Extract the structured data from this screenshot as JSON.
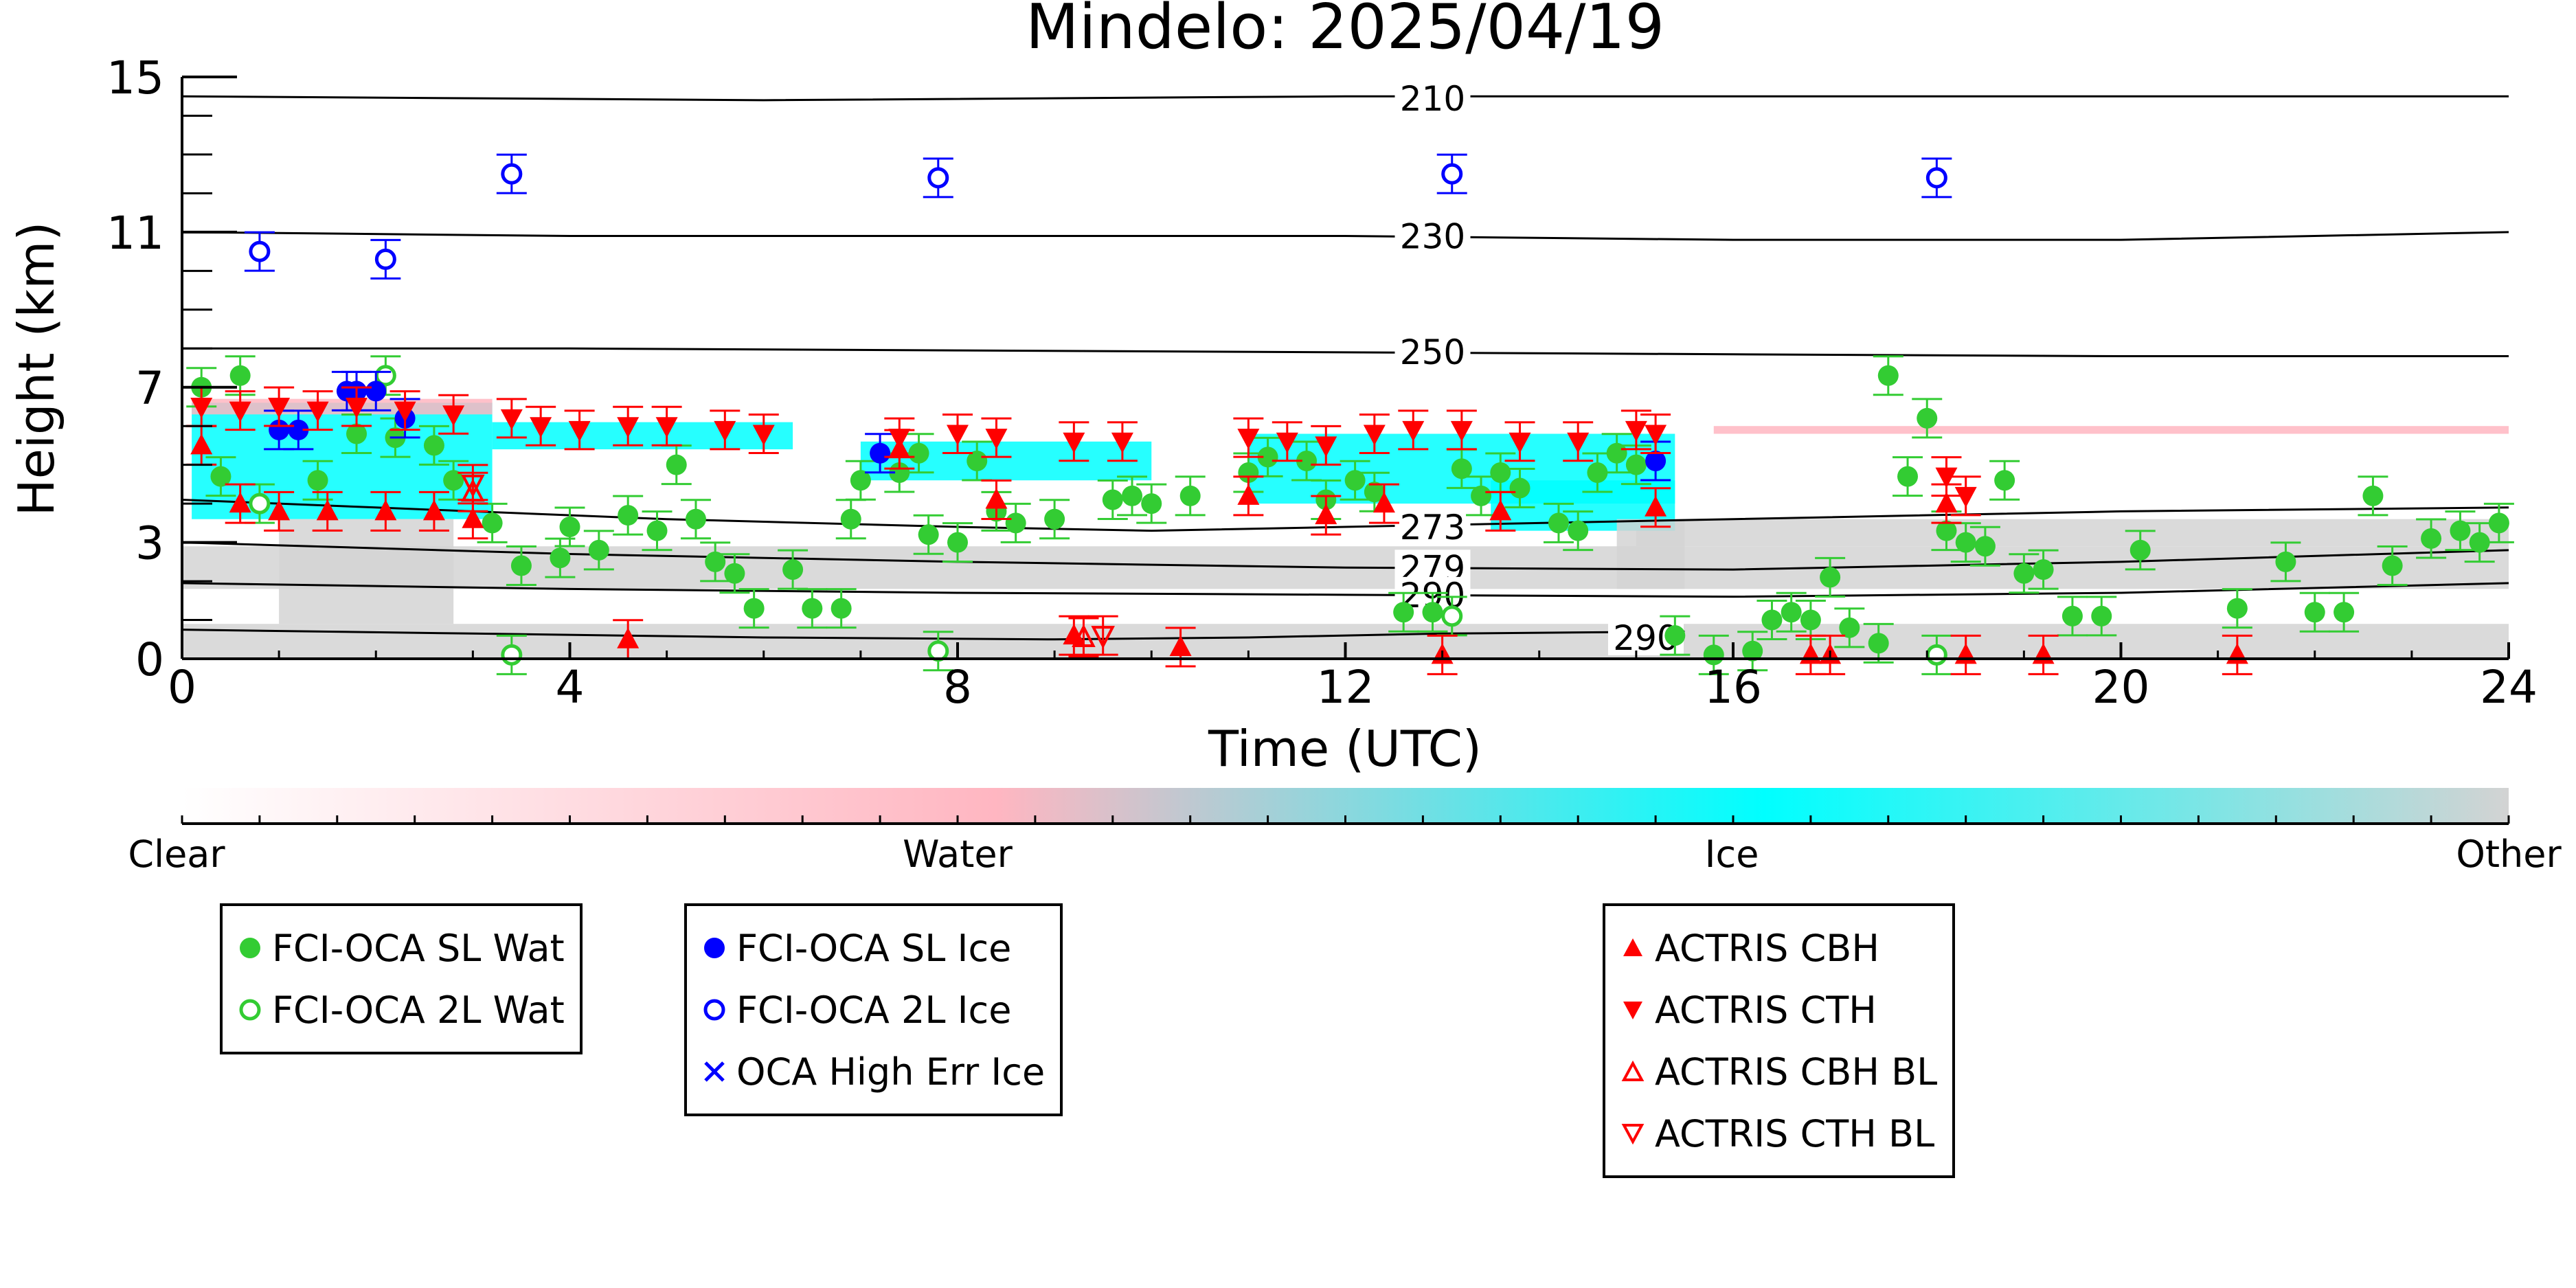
{
  "chart_data": {
    "type": "scatter",
    "title": "Mindelo: 2025/04/19",
    "xlabel": "Time (UTC)",
    "ylabel": "Height (km)",
    "xlim": [
      0,
      24
    ],
    "ylim": [
      0,
      15
    ],
    "x_ticks": [
      "0",
      "4",
      "8",
      "12",
      "16",
      "20",
      "24"
    ],
    "y_ticks": [
      "0",
      "3",
      "7",
      "11",
      "15"
    ],
    "grid": false,
    "background_image": "cloud classification curtain (Clear / Water / Ice / Other)",
    "colorbar": {
      "labels": [
        "Clear",
        "Water",
        "Ice",
        "Other"
      ],
      "colors": [
        "#ffffff",
        "#ffb6c1",
        "#00ffff",
        "#d3d3d3"
      ]
    },
    "temperature_contours": [
      {
        "label": "210",
        "x": [
          0,
          6,
          12,
          18,
          24
        ],
        "y": [
          14.5,
          14.4,
          14.5,
          14.5,
          14.5
        ]
      },
      {
        "label": "230",
        "x": [
          0,
          4,
          8,
          12,
          16,
          20,
          24
        ],
        "y": [
          11.0,
          10.9,
          10.9,
          10.9,
          10.8,
          10.8,
          11.0
        ]
      },
      {
        "label": "250",
        "x": [
          0,
          4,
          8,
          12,
          16,
          20,
          24
        ],
        "y": [
          8.0,
          8.0,
          7.95,
          7.9,
          7.85,
          7.8,
          7.8
        ]
      },
      {
        "label": "273",
        "x": [
          0,
          2,
          5,
          8,
          10,
          12,
          14,
          16,
          20,
          24
        ],
        "y": [
          4.1,
          3.9,
          3.6,
          3.4,
          3.3,
          3.4,
          3.5,
          3.6,
          3.8,
          3.9
        ]
      },
      {
        "label": "279",
        "x": [
          0,
          4,
          8,
          12,
          16,
          20,
          24
        ],
        "y": [
          3.0,
          2.7,
          2.5,
          2.35,
          2.3,
          2.5,
          2.8
        ]
      },
      {
        "label": "290",
        "x": [
          0,
          4,
          8,
          12,
          16,
          20,
          24
        ],
        "y": [
          1.95,
          1.8,
          1.7,
          1.65,
          1.6,
          1.7,
          1.95
        ]
      },
      {
        "label": "290",
        "x": [
          0,
          3,
          6,
          9,
          11,
          13,
          15.5
        ],
        "y": [
          0.75,
          0.65,
          0.55,
          0.5,
          0.55,
          0.65,
          0.7
        ]
      }
    ],
    "series": [
      {
        "name": "FCI-OCA SL Wat",
        "color": "#33cc33",
        "marker": "filled-circle",
        "points": [
          [
            0.2,
            7.0
          ],
          [
            0.4,
            4.7
          ],
          [
            0.6,
            7.3
          ],
          [
            1.4,
            4.6
          ],
          [
            1.8,
            5.8
          ],
          [
            2.2,
            5.7
          ],
          [
            2.6,
            5.5
          ],
          [
            2.8,
            4.6
          ],
          [
            3.2,
            3.5
          ],
          [
            3.5,
            2.4
          ],
          [
            3.9,
            2.6
          ],
          [
            4.0,
            3.4
          ],
          [
            4.3,
            2.8
          ],
          [
            4.6,
            3.7
          ],
          [
            4.9,
            3.3
          ],
          [
            5.1,
            5.0
          ],
          [
            5.3,
            3.6
          ],
          [
            5.5,
            2.5
          ],
          [
            5.7,
            2.2
          ],
          [
            5.9,
            1.3
          ],
          [
            6.3,
            2.3
          ],
          [
            6.5,
            1.3
          ],
          [
            6.8,
            1.3
          ],
          [
            6.9,
            3.6
          ],
          [
            7.0,
            4.6
          ],
          [
            7.4,
            4.8
          ],
          [
            7.6,
            5.3
          ],
          [
            7.7,
            3.2
          ],
          [
            8.0,
            3.0
          ],
          [
            8.2,
            5.1
          ],
          [
            8.4,
            3.8
          ],
          [
            8.6,
            3.5
          ],
          [
            9.0,
            3.6
          ],
          [
            9.6,
            4.1
          ],
          [
            9.8,
            4.2
          ],
          [
            10.0,
            4.0
          ],
          [
            10.4,
            4.2
          ],
          [
            11.0,
            4.8
          ],
          [
            11.2,
            5.2
          ],
          [
            11.6,
            5.1
          ],
          [
            11.8,
            4.1
          ],
          [
            12.1,
            4.6
          ],
          [
            12.3,
            4.3
          ],
          [
            12.6,
            1.2
          ],
          [
            12.9,
            1.2
          ],
          [
            13.2,
            4.9
          ],
          [
            13.4,
            4.2
          ],
          [
            13.6,
            4.8
          ],
          [
            13.8,
            4.4
          ],
          [
            14.2,
            3.5
          ],
          [
            14.4,
            3.3
          ],
          [
            14.6,
            4.8
          ],
          [
            14.8,
            5.3
          ],
          [
            15.0,
            5.0
          ],
          [
            15.4,
            0.6
          ],
          [
            15.8,
            0.1
          ],
          [
            16.2,
            0.2
          ],
          [
            16.4,
            1.0
          ],
          [
            16.6,
            1.2
          ],
          [
            16.8,
            1.0
          ],
          [
            17.0,
            2.1
          ],
          [
            17.2,
            0.8
          ],
          [
            17.5,
            0.4
          ],
          [
            17.6,
            7.3
          ],
          [
            17.8,
            4.7
          ],
          [
            18.0,
            6.2
          ],
          [
            18.2,
            3.3
          ],
          [
            18.4,
            3.0
          ],
          [
            18.6,
            2.9
          ],
          [
            18.8,
            4.6
          ],
          [
            19.0,
            2.2
          ],
          [
            19.2,
            2.3
          ],
          [
            19.5,
            1.1
          ],
          [
            19.8,
            1.1
          ],
          [
            20.2,
            2.8
          ],
          [
            21.2,
            1.3
          ],
          [
            21.7,
            2.5
          ],
          [
            22.0,
            1.2
          ],
          [
            22.3,
            1.2
          ],
          [
            22.6,
            4.2
          ],
          [
            22.8,
            2.4
          ],
          [
            23.2,
            3.1
          ],
          [
            23.5,
            3.3
          ],
          [
            23.7,
            3.0
          ],
          [
            23.9,
            3.5
          ]
        ]
      },
      {
        "name": "FCI-OCA 2L Wat",
        "color": "#33cc33",
        "marker": "open-circle",
        "points": [
          [
            0.8,
            4.0
          ],
          [
            2.1,
            7.3
          ],
          [
            3.4,
            0.1
          ],
          [
            7.8,
            0.2
          ],
          [
            13.1,
            1.1
          ],
          [
            18.1,
            0.1
          ]
        ]
      },
      {
        "name": "FCI-OCA SL Ice",
        "color": "#0000ff",
        "marker": "filled-circle",
        "points": [
          [
            1.0,
            5.9
          ],
          [
            1.2,
            5.9
          ],
          [
            1.7,
            6.9
          ],
          [
            1.8,
            6.9
          ],
          [
            2.0,
            6.9
          ],
          [
            2.3,
            6.2
          ],
          [
            7.2,
            5.3
          ],
          [
            15.2,
            5.1
          ]
        ]
      },
      {
        "name": "FCI-OCA 2L Ice",
        "color": "#0000ff",
        "marker": "open-circle",
        "points": [
          [
            0.8,
            10.5
          ],
          [
            2.1,
            10.3
          ],
          [
            3.4,
            12.5
          ],
          [
            7.8,
            12.4
          ],
          [
            13.1,
            12.5
          ],
          [
            18.1,
            12.4
          ]
        ]
      },
      {
        "name": "OCA High Err Ice",
        "color": "#0000ff",
        "marker": "x",
        "points": []
      },
      {
        "name": "ACTRIS CBH",
        "color": "#ff0000",
        "marker": "triangle-up",
        "points": [
          [
            0.2,
            5.5
          ],
          [
            0.6,
            4.0
          ],
          [
            1.0,
            3.8
          ],
          [
            1.5,
            3.8
          ],
          [
            2.1,
            3.8
          ],
          [
            2.6,
            3.8
          ],
          [
            3.0,
            3.6
          ],
          [
            4.6,
            0.5
          ],
          [
            7.4,
            5.4
          ],
          [
            8.4,
            4.1
          ],
          [
            9.2,
            0.6
          ],
          [
            10.3,
            0.3
          ],
          [
            11.0,
            4.2
          ],
          [
            11.8,
            3.7
          ],
          [
            12.4,
            4.0
          ],
          [
            13.0,
            0.1
          ],
          [
            13.6,
            3.8
          ],
          [
            15.2,
            3.9
          ],
          [
            16.8,
            0.1
          ],
          [
            17.0,
            0.1
          ],
          [
            18.2,
            4.0
          ],
          [
            18.4,
            0.1
          ],
          [
            19.2,
            0.1
          ],
          [
            21.2,
            0.1
          ]
        ]
      },
      {
        "name": "ACTRIS CTH",
        "color": "#ff0000",
        "marker": "triangle-down",
        "points": [
          [
            0.2,
            6.5
          ],
          [
            0.6,
            6.4
          ],
          [
            1.0,
            6.5
          ],
          [
            1.4,
            6.4
          ],
          [
            1.8,
            6.5
          ],
          [
            2.3,
            6.4
          ],
          [
            2.8,
            6.3
          ],
          [
            3.4,
            6.2
          ],
          [
            3.7,
            6.0
          ],
          [
            4.1,
            5.9
          ],
          [
            4.6,
            6.0
          ],
          [
            5.0,
            6.0
          ],
          [
            5.6,
            5.9
          ],
          [
            6.0,
            5.8
          ],
          [
            7.4,
            5.7
          ],
          [
            8.0,
            5.8
          ],
          [
            8.4,
            5.7
          ],
          [
            9.2,
            5.6
          ],
          [
            9.7,
            5.6
          ],
          [
            11.0,
            5.7
          ],
          [
            11.4,
            5.6
          ],
          [
            11.8,
            5.5
          ],
          [
            12.3,
            5.8
          ],
          [
            12.7,
            5.9
          ],
          [
            13.2,
            5.9
          ],
          [
            13.8,
            5.6
          ],
          [
            14.4,
            5.6
          ],
          [
            15.0,
            5.9
          ],
          [
            15.2,
            5.8
          ],
          [
            18.2,
            4.7
          ],
          [
            18.4,
            4.2
          ]
        ]
      },
      {
        "name": "ACTRIS CBH BL",
        "color": "#ff0000",
        "marker": "open-triangle-up",
        "points": [
          [
            3.0,
            4.3
          ],
          [
            9.3,
            0.55
          ]
        ]
      },
      {
        "name": "ACTRIS CTH BL",
        "color": "#ff0000",
        "marker": "open-triangle-down",
        "points": [
          [
            3.0,
            4.5
          ],
          [
            9.5,
            0.6
          ]
        ]
      }
    ]
  },
  "legend_groups": [
    [
      "FCI-OCA SL Wat",
      "FCI-OCA 2L Wat"
    ],
    [
      "FCI-OCA SL Ice",
      "FCI-OCA 2L Ice",
      "OCA High Err Ice"
    ],
    [
      "ACTRIS CBH",
      "ACTRIS CTH",
      "ACTRIS CBH BL",
      "ACTRIS CTH BL"
    ]
  ],
  "legend": {
    "g1": [
      "FCI-OCA SL Wat",
      "FCI-OCA 2L Wat"
    ],
    "g2": [
      "FCI-OCA SL Ice",
      "FCI-OCA 2L Ice",
      "OCA High Err Ice"
    ],
    "g3": [
      "ACTRIS CBH",
      "ACTRIS CTH",
      "ACTRIS CBH BL",
      "ACTRIS CTH BL"
    ]
  }
}
